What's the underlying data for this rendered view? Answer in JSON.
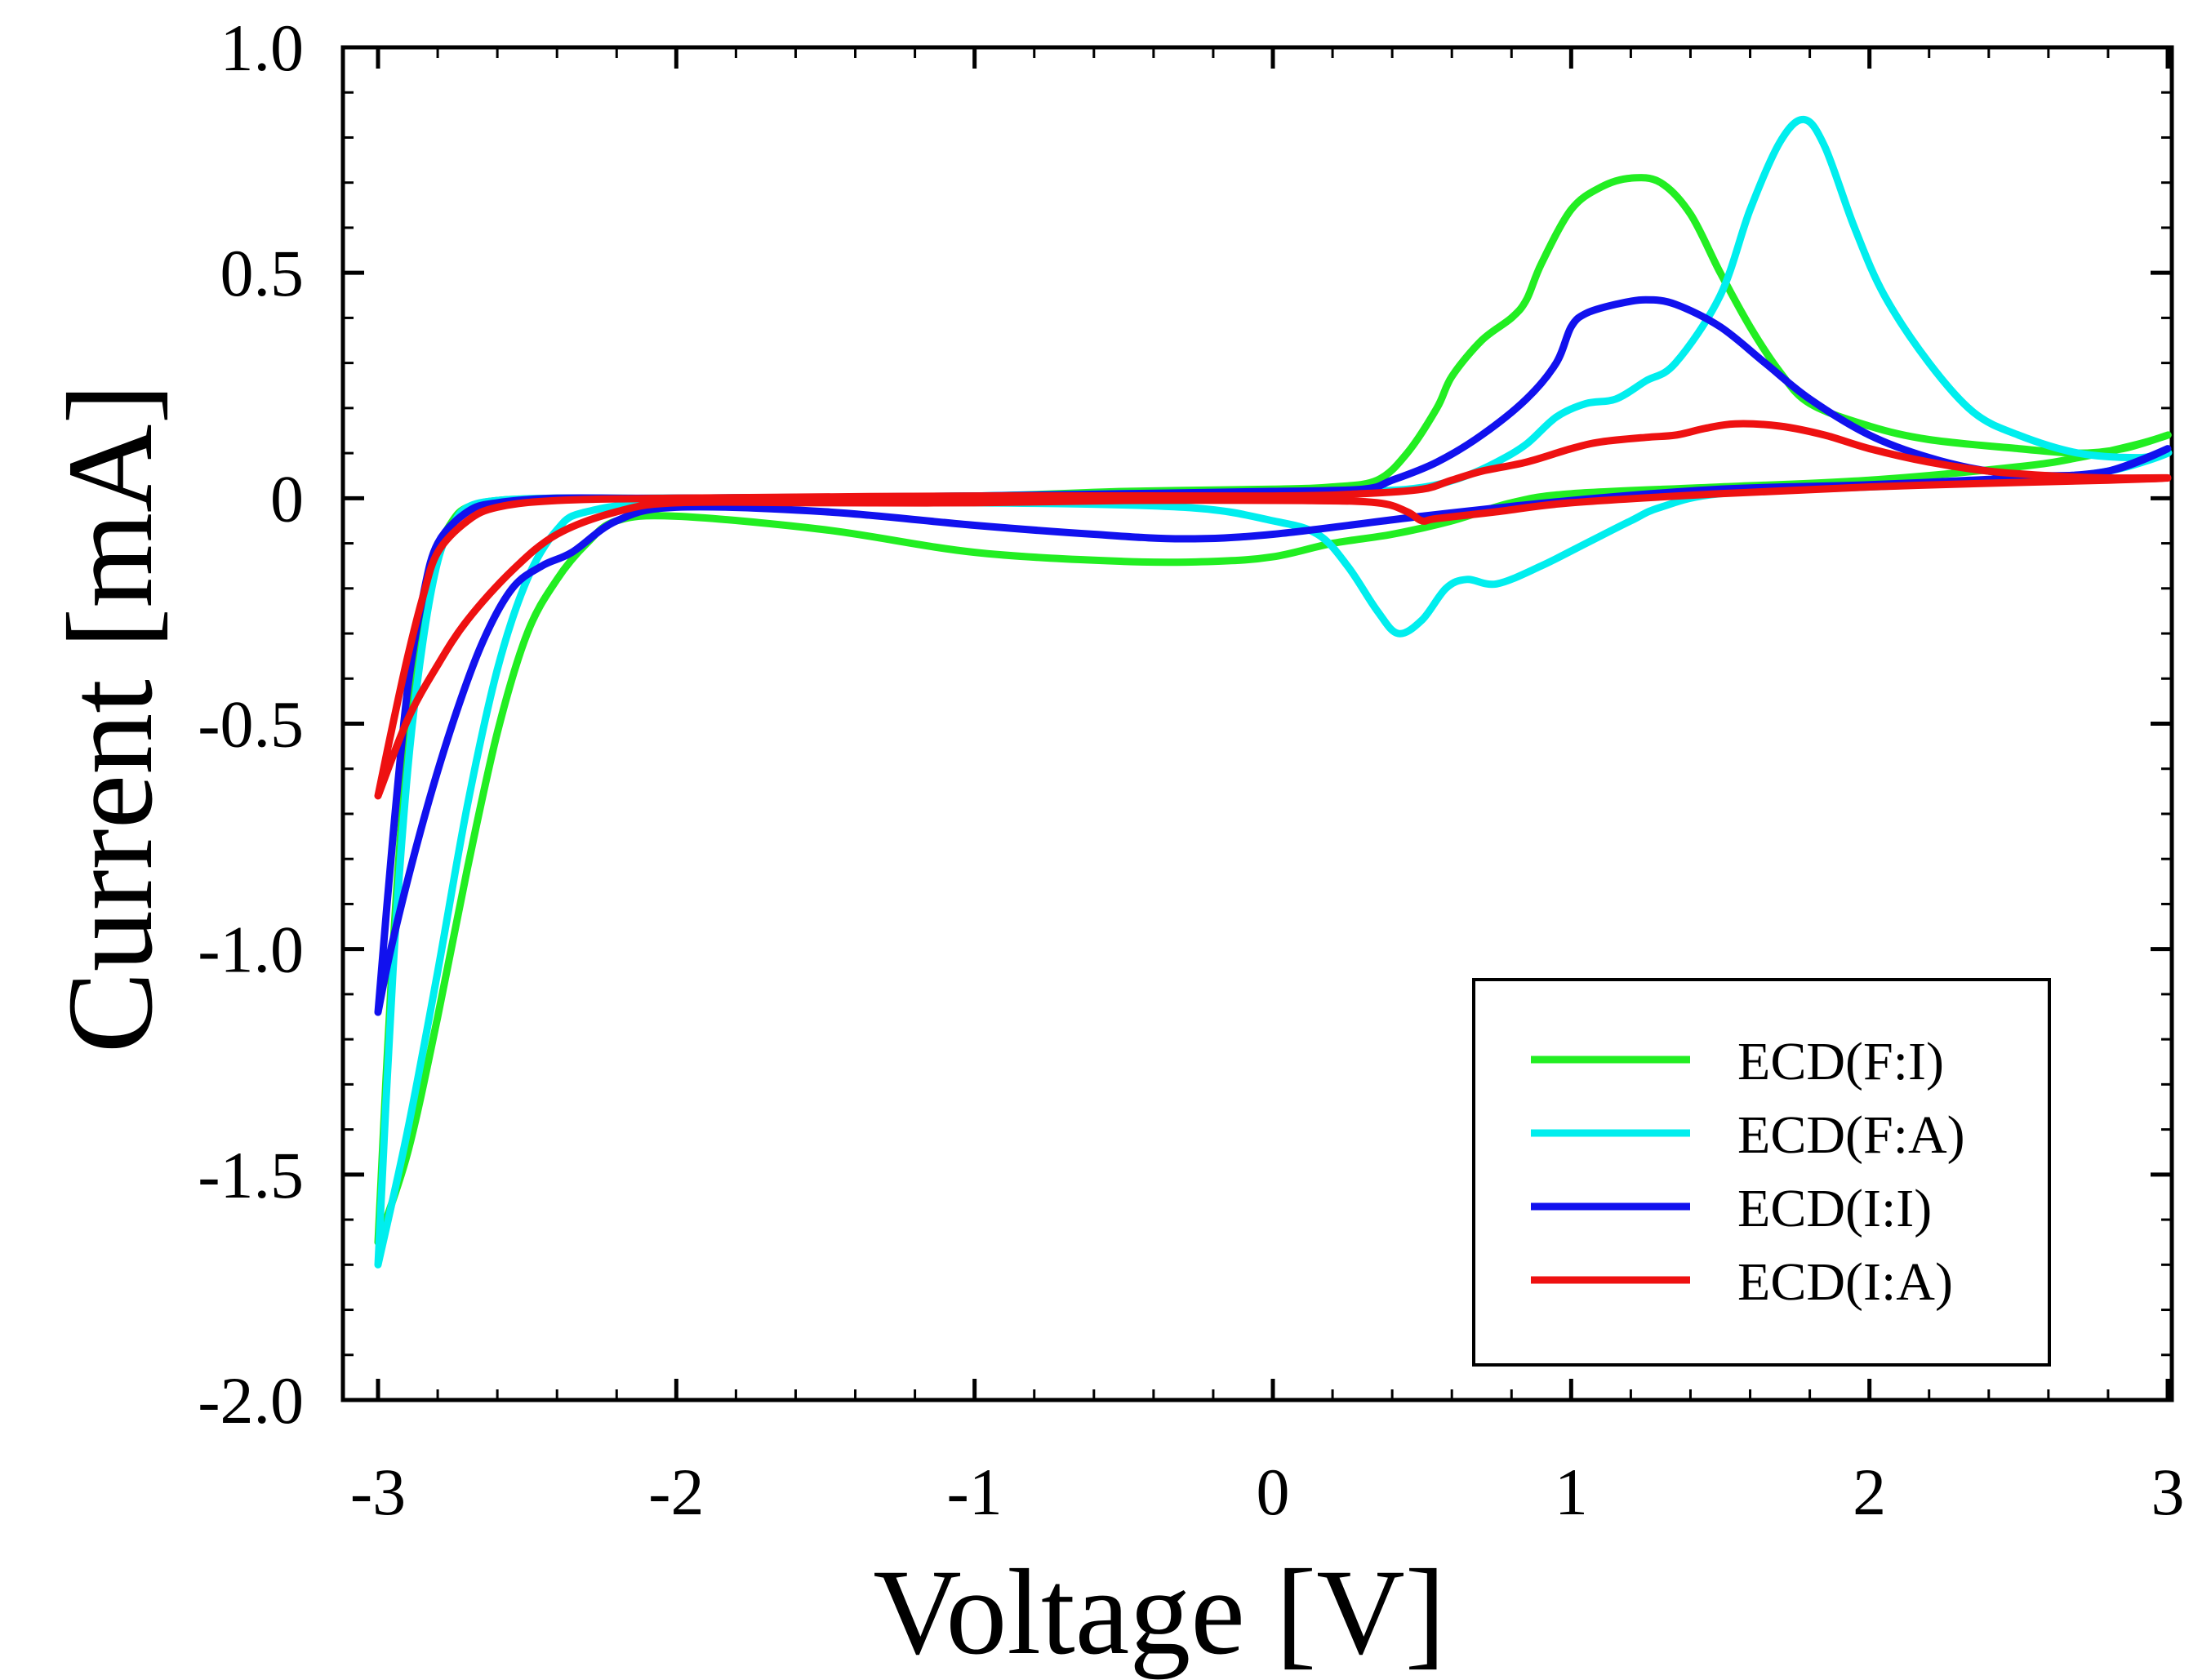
{
  "chart_data": {
    "type": "line",
    "xlabel": "Voltage [V]",
    "ylabel": "Current [mA]",
    "xlim": [
      -3,
      3
    ],
    "ylim": [
      -2.0,
      1.0
    ],
    "x_ticks": [
      -3,
      -2,
      -1,
      0,
      1,
      2,
      3
    ],
    "x_tick_labels": [
      "-3",
      "-2",
      "-1",
      "0",
      "1",
      "2",
      "3"
    ],
    "y_ticks": [
      1.0,
      0.5,
      0,
      -0.5,
      -1.0,
      -1.5,
      -2.0
    ],
    "y_tick_labels": [
      "1.0",
      "0.5",
      "0",
      "-0.5",
      "-1.0",
      "-1.5",
      "-2.0"
    ],
    "grid": false,
    "legend_position": "bottom-right",
    "series": [
      {
        "name": "ECD(F:I)",
        "color": "#22ee22",
        "points": [
          [
            -3,
            -1.65
          ],
          [
            -2.95,
            -1.0
          ],
          [
            -2.9,
            -0.55
          ],
          [
            -2.85,
            -0.28
          ],
          [
            -2.8,
            -0.12
          ],
          [
            -2.75,
            -0.05
          ],
          [
            -2.7,
            -0.02
          ],
          [
            -2.6,
            -0.005
          ],
          [
            -2.4,
            0
          ],
          [
            -2.0,
            0
          ],
          [
            -1.0,
            0.005
          ],
          [
            -0.5,
            0.015
          ],
          [
            0,
            0.02
          ],
          [
            0.2,
            0.025
          ],
          [
            0.35,
            0.04
          ],
          [
            0.45,
            0.1
          ],
          [
            0.55,
            0.2
          ],
          [
            0.6,
            0.27
          ],
          [
            0.7,
            0.35
          ],
          [
            0.8,
            0.4
          ],
          [
            0.85,
            0.44
          ],
          [
            0.9,
            0.52
          ],
          [
            1.0,
            0.64
          ],
          [
            1.1,
            0.69
          ],
          [
            1.2,
            0.71
          ],
          [
            1.3,
            0.7
          ],
          [
            1.4,
            0.63
          ],
          [
            1.5,
            0.5
          ],
          [
            1.6,
            0.38
          ],
          [
            1.7,
            0.28
          ],
          [
            1.8,
            0.21
          ],
          [
            2.0,
            0.16
          ],
          [
            2.2,
            0.13
          ],
          [
            2.5,
            0.11
          ],
          [
            2.7,
            0.1
          ],
          [
            2.85,
            0.11
          ],
          [
            3.0,
            0.14
          ],
          [
            2.9,
            0.12
          ],
          [
            2.7,
            0.09
          ],
          [
            2.5,
            0.07
          ],
          [
            2.0,
            0.04
          ],
          [
            1.5,
            0.025
          ],
          [
            1.0,
            0.01
          ],
          [
            0.8,
            -0.01
          ],
          [
            0.6,
            -0.05
          ],
          [
            0.4,
            -0.08
          ],
          [
            0.2,
            -0.1
          ],
          [
            0,
            -0.13
          ],
          [
            -0.2,
            -0.14
          ],
          [
            -0.5,
            -0.14
          ],
          [
            -1.0,
            -0.12
          ],
          [
            -1.5,
            -0.07
          ],
          [
            -2.0,
            -0.04
          ],
          [
            -2.2,
            -0.05
          ],
          [
            -2.3,
            -0.1
          ],
          [
            -2.4,
            -0.18
          ],
          [
            -2.5,
            -0.3
          ],
          [
            -2.6,
            -0.52
          ],
          [
            -2.7,
            -0.82
          ],
          [
            -2.8,
            -1.15
          ],
          [
            -2.9,
            -1.45
          ],
          [
            -3.0,
            -1.65
          ]
        ]
      },
      {
        "name": "ECD(F:A)",
        "color": "#00eeee",
        "points": [
          [
            -3,
            -1.7
          ],
          [
            -2.95,
            -1.05
          ],
          [
            -2.9,
            -0.6
          ],
          [
            -2.85,
            -0.32
          ],
          [
            -2.8,
            -0.14
          ],
          [
            -2.75,
            -0.06
          ],
          [
            -2.7,
            -0.02
          ],
          [
            -2.6,
            -0.005
          ],
          [
            -2.4,
            0
          ],
          [
            -2.0,
            0
          ],
          [
            -1.0,
            0.005
          ],
          [
            -0.5,
            0.01
          ],
          [
            0,
            0.01
          ],
          [
            0.3,
            0.015
          ],
          [
            0.45,
            0.02
          ],
          [
            0.55,
            0.03
          ],
          [
            0.65,
            0.05
          ],
          [
            0.75,
            0.08
          ],
          [
            0.85,
            0.12
          ],
          [
            0.95,
            0.18
          ],
          [
            1.05,
            0.21
          ],
          [
            1.15,
            0.22
          ],
          [
            1.25,
            0.26
          ],
          [
            1.35,
            0.3
          ],
          [
            1.5,
            0.45
          ],
          [
            1.6,
            0.64
          ],
          [
            1.7,
            0.79
          ],
          [
            1.78,
            0.84
          ],
          [
            1.85,
            0.78
          ],
          [
            1.95,
            0.6
          ],
          [
            2.05,
            0.45
          ],
          [
            2.2,
            0.3
          ],
          [
            2.35,
            0.19
          ],
          [
            2.5,
            0.14
          ],
          [
            2.7,
            0.1
          ],
          [
            2.9,
            0.09
          ],
          [
            3.0,
            0.1
          ],
          [
            2.8,
            0.06
          ],
          [
            2.5,
            0.04
          ],
          [
            2.0,
            0.025
          ],
          [
            1.5,
            0.01
          ],
          [
            1.3,
            -0.02
          ],
          [
            1.2,
            -0.05
          ],
          [
            1.05,
            -0.1
          ],
          [
            0.9,
            -0.15
          ],
          [
            0.75,
            -0.19
          ],
          [
            0.65,
            -0.18
          ],
          [
            0.58,
            -0.2
          ],
          [
            0.5,
            -0.27
          ],
          [
            0.42,
            -0.3
          ],
          [
            0.35,
            -0.25
          ],
          [
            0.25,
            -0.15
          ],
          [
            0.15,
            -0.08
          ],
          [
            0,
            -0.05
          ],
          [
            -0.3,
            -0.02
          ],
          [
            -1.0,
            -0.01
          ],
          [
            -2.0,
            -0.01
          ],
          [
            -2.3,
            -0.03
          ],
          [
            -2.4,
            -0.07
          ],
          [
            -2.5,
            -0.18
          ],
          [
            -2.6,
            -0.38
          ],
          [
            -2.7,
            -0.68
          ],
          [
            -2.8,
            -1.05
          ],
          [
            -2.9,
            -1.4
          ],
          [
            -3.0,
            -1.7
          ]
        ]
      },
      {
        "name": "ECD(I:I)",
        "color": "#1111ee",
        "points": [
          [
            -3,
            -1.14
          ],
          [
            -2.95,
            -0.75
          ],
          [
            -2.9,
            -0.42
          ],
          [
            -2.85,
            -0.22
          ],
          [
            -2.8,
            -0.1
          ],
          [
            -2.7,
            -0.03
          ],
          [
            -2.6,
            -0.01
          ],
          [
            -2.4,
            0
          ],
          [
            -2.0,
            0
          ],
          [
            -1.0,
            0.005
          ],
          [
            -0.5,
            0.01
          ],
          [
            0,
            0.015
          ],
          [
            0.3,
            0.02
          ],
          [
            0.4,
            0.04
          ],
          [
            0.55,
            0.08
          ],
          [
            0.7,
            0.14
          ],
          [
            0.85,
            0.22
          ],
          [
            0.95,
            0.3
          ],
          [
            1.0,
            0.38
          ],
          [
            1.05,
            0.41
          ],
          [
            1.15,
            0.43
          ],
          [
            1.25,
            0.44
          ],
          [
            1.35,
            0.43
          ],
          [
            1.5,
            0.38
          ],
          [
            1.65,
            0.3
          ],
          [
            1.8,
            0.22
          ],
          [
            2.0,
            0.14
          ],
          [
            2.2,
            0.09
          ],
          [
            2.4,
            0.06
          ],
          [
            2.6,
            0.05
          ],
          [
            2.8,
            0.06
          ],
          [
            3.0,
            0.11
          ],
          [
            2.8,
            0.06
          ],
          [
            2.5,
            0.045
          ],
          [
            2.0,
            0.03
          ],
          [
            1.5,
            0.02
          ],
          [
            1.0,
            -0.005
          ],
          [
            0.5,
            -0.04
          ],
          [
            0,
            -0.08
          ],
          [
            -0.3,
            -0.09
          ],
          [
            -0.6,
            -0.08
          ],
          [
            -1.0,
            -0.06
          ],
          [
            -1.5,
            -0.03
          ],
          [
            -2.0,
            -0.02
          ],
          [
            -2.2,
            -0.05
          ],
          [
            -2.35,
            -0.12
          ],
          [
            -2.45,
            -0.15
          ],
          [
            -2.55,
            -0.2
          ],
          [
            -2.65,
            -0.32
          ],
          [
            -2.75,
            -0.5
          ],
          [
            -2.85,
            -0.72
          ],
          [
            -2.95,
            -0.98
          ],
          [
            -3.0,
            -1.14
          ]
        ]
      },
      {
        "name": "ECD(I:A)",
        "color": "#ee1111",
        "points": [
          [
            -3,
            -0.66
          ],
          [
            -2.95,
            -0.5
          ],
          [
            -2.9,
            -0.35
          ],
          [
            -2.85,
            -0.22
          ],
          [
            -2.8,
            -0.12
          ],
          [
            -2.7,
            -0.05
          ],
          [
            -2.6,
            -0.02
          ],
          [
            -2.4,
            -0.005
          ],
          [
            -2.0,
            0
          ],
          [
            -1.0,
            0.005
          ],
          [
            0,
            0.005
          ],
          [
            0.3,
            0.01
          ],
          [
            0.5,
            0.02
          ],
          [
            0.6,
            0.04
          ],
          [
            0.7,
            0.06
          ],
          [
            0.85,
            0.08
          ],
          [
            1.0,
            0.11
          ],
          [
            1.1,
            0.125
          ],
          [
            1.25,
            0.135
          ],
          [
            1.35,
            0.14
          ],
          [
            1.45,
            0.155
          ],
          [
            1.55,
            0.165
          ],
          [
            1.7,
            0.16
          ],
          [
            1.85,
            0.14
          ],
          [
            2.0,
            0.11
          ],
          [
            2.2,
            0.08
          ],
          [
            2.4,
            0.06
          ],
          [
            2.6,
            0.05
          ],
          [
            2.8,
            0.045
          ],
          [
            3.0,
            0.045
          ],
          [
            2.8,
            0.04
          ],
          [
            2.5,
            0.035
          ],
          [
            2.0,
            0.025
          ],
          [
            1.5,
            0.01
          ],
          [
            1.0,
            -0.01
          ],
          [
            0.75,
            -0.03
          ],
          [
            0.55,
            -0.045
          ],
          [
            0.5,
            -0.05
          ],
          [
            0.45,
            -0.03
          ],
          [
            0.35,
            -0.01
          ],
          [
            0.1,
            -0.005
          ],
          [
            -0.5,
            -0.005
          ],
          [
            -1.0,
            -0.01
          ],
          [
            -1.5,
            -0.01
          ],
          [
            -2.0,
            -0.01
          ],
          [
            -2.2,
            -0.03
          ],
          [
            -2.4,
            -0.08
          ],
          [
            -2.55,
            -0.16
          ],
          [
            -2.7,
            -0.27
          ],
          [
            -2.8,
            -0.37
          ],
          [
            -2.9,
            -0.49
          ],
          [
            -3.0,
            -0.66
          ]
        ]
      }
    ]
  }
}
